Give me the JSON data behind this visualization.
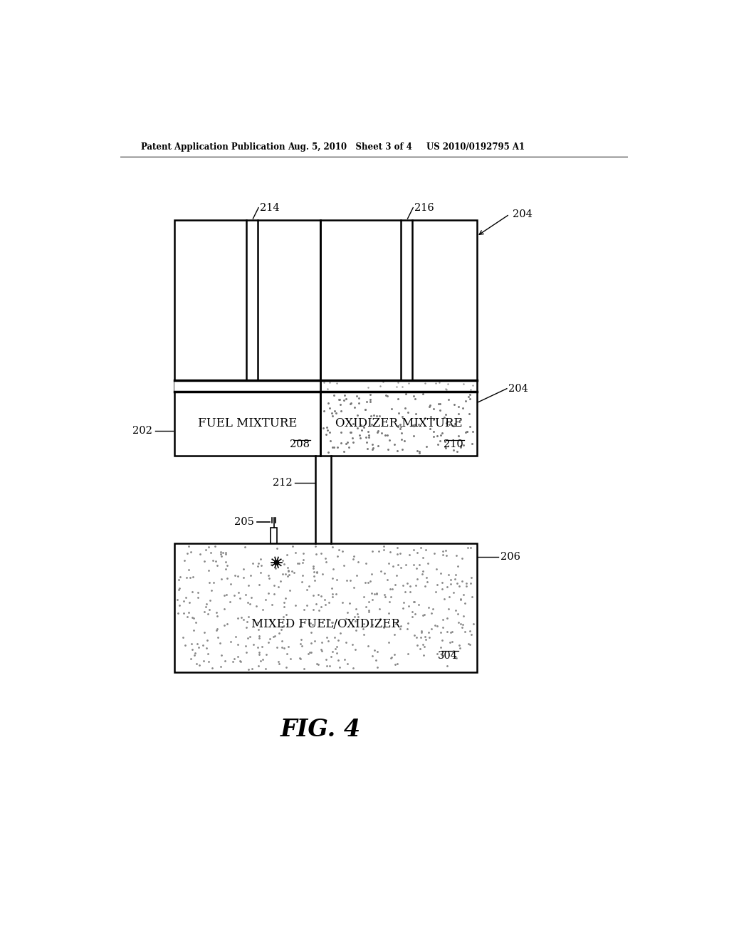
{
  "background_color": "#ffffff",
  "header_text1": "Patent Application Publication",
  "header_text2": "Aug. 5, 2010   Sheet 3 of 4",
  "header_text3": "US 2010/0192795 A1",
  "figure_label": "FIG. 4",
  "label_202": "202",
  "label_204a": "204",
  "label_204b": "204",
  "label_205": "205",
  "label_206": "206",
  "label_208": "208",
  "label_210": "210",
  "label_212": "212",
  "label_214": "214",
  "label_216": "216",
  "label_304": "304",
  "text_fuel": "FUEL MIXTURE",
  "text_oxidizer": "OXIDIZER MIXTURE",
  "text_mixed": "MIXED FUEL/OXIDIZER"
}
